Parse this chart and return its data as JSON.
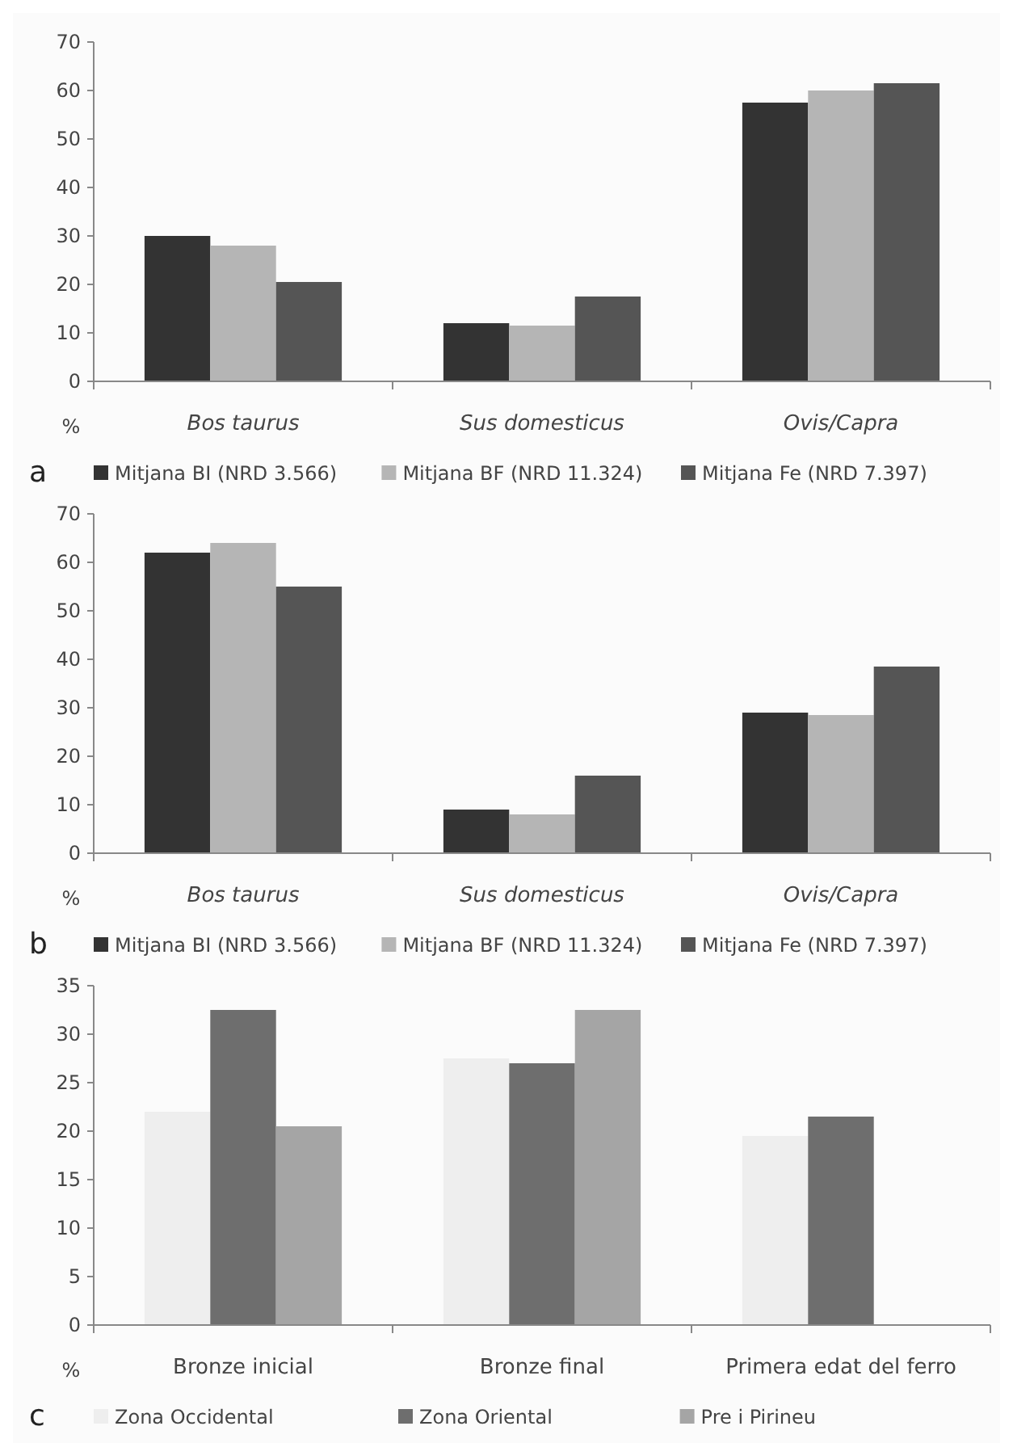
{
  "chart_data": [
    {
      "type": "bar",
      "title": "a",
      "ylabel": "%",
      "categories": [
        "Bos taurus",
        "Sus domesticus",
        "Ovis/Capra"
      ],
      "ylim": [
        0,
        70
      ],
      "yticks": [
        0,
        10,
        20,
        30,
        40,
        50,
        60,
        70
      ],
      "legend": "bottom",
      "series": [
        {
          "name": "Mitjana BI (NRD 3.566)",
          "color": "#333333",
          "values": [
            30,
            12,
            57.5
          ]
        },
        {
          "name": "Mitjana BF (NRD 11.324)",
          "color": "#b5b5b5",
          "values": [
            28,
            11.5,
            60
          ]
        },
        {
          "name": "Mitjana Fe (NRD 7.397)",
          "color": "#555555",
          "values": [
            20.5,
            17.5,
            61.5
          ]
        }
      ]
    },
    {
      "type": "bar",
      "title": "b",
      "ylabel": "%",
      "categories": [
        "Bos taurus",
        "Sus domesticus",
        "Ovis/Capra"
      ],
      "ylim": [
        0,
        70
      ],
      "yticks": [
        0,
        10,
        20,
        30,
        40,
        50,
        60,
        70
      ],
      "legend": "bottom",
      "series": [
        {
          "name": "Mitjana BI (NRD 3.566)",
          "color": "#333333",
          "values": [
            62,
            9,
            29
          ]
        },
        {
          "name": "Mitjana BF (NRD 11.324)",
          "color": "#b5b5b5",
          "values": [
            64,
            8,
            28.5
          ]
        },
        {
          "name": "Mitjana Fe (NRD 7.397)",
          "color": "#555555",
          "values": [
            55,
            16,
            38.5
          ]
        }
      ]
    },
    {
      "type": "bar",
      "title": "c",
      "ylabel": "%",
      "categories": [
        "Bronze inicial",
        "Bronze final",
        "Primera edat del ferro"
      ],
      "ylim": [
        0,
        35
      ],
      "yticks": [
        0,
        5,
        10,
        15,
        20,
        25,
        30,
        35
      ],
      "legend": "bottom",
      "series": [
        {
          "name": "Zona Occidental",
          "color": "#eeeeee",
          "values": [
            22,
            27.5,
            19.5
          ]
        },
        {
          "name": "Zona Oriental",
          "color": "#6e6e6e",
          "values": [
            32.5,
            27,
            21.5
          ]
        },
        {
          "name": "Pre i Pirineu",
          "color": "#a5a5a5",
          "values": [
            20.5,
            32.5,
            null
          ]
        }
      ]
    }
  ]
}
